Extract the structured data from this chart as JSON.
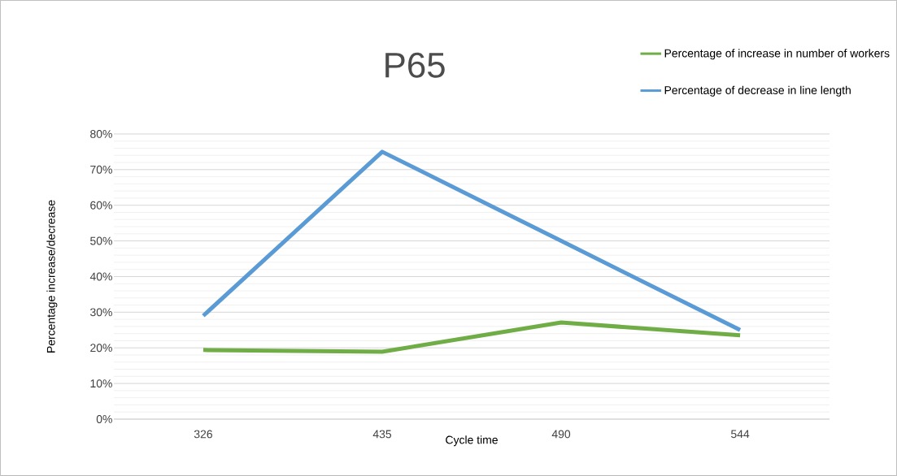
{
  "chart_data": {
    "type": "line",
    "title": "P65",
    "xlabel": "Cycle time",
    "ylabel": "Percentage increase/decrease",
    "categories": [
      "326",
      "435",
      "490",
      "544"
    ],
    "series": [
      {
        "name": "Percentage of increase in number of workers",
        "color": "#70ad47",
        "values": [
          19.4,
          18.9,
          27.1,
          23.5
        ]
      },
      {
        "name": "Percentage of decrease in line length",
        "color": "#5b9bd5",
        "values": [
          29,
          75,
          50,
          25
        ]
      }
    ],
    "ylim": [
      0,
      80
    ],
    "yticks": [
      {
        "value": 0,
        "label": "0%"
      },
      {
        "value": 10,
        "label": "10%"
      },
      {
        "value": 20,
        "label": "20%"
      },
      {
        "value": 30,
        "label": "30%"
      },
      {
        "value": 40,
        "label": "40%"
      },
      {
        "value": 50,
        "label": "50%"
      },
      {
        "value": 60,
        "label": "60%"
      },
      {
        "value": 70,
        "label": "70%"
      },
      {
        "value": 80,
        "label": "80%"
      }
    ],
    "grid": "y",
    "legend": "top right",
    "marker": "none",
    "line_style": "solid"
  }
}
